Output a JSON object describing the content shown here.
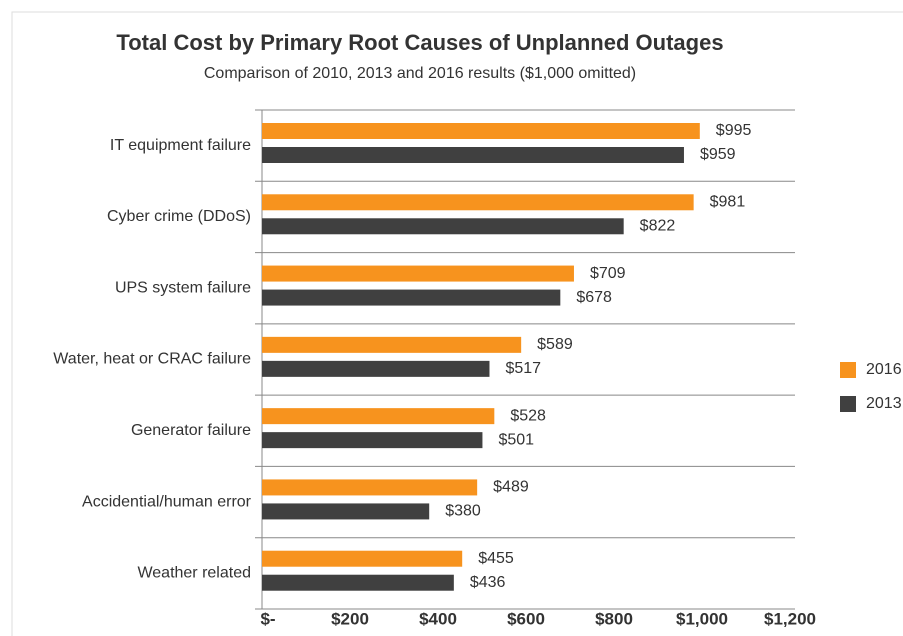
{
  "chart_data": {
    "type": "hbar",
    "title": "Total Cost by Primary Root Causes of Unplanned Outages",
    "subtitle": "Comparison of 2010, 2013 and 2016 results ($1,000 omitted)",
    "categories": [
      "IT equipment failure",
      "Cyber crime (DDoS)",
      "UPS system failure",
      "Water, heat or CRAC failure",
      "Generator failure",
      "Accidential/human error",
      "Weather related"
    ],
    "series": [
      {
        "name": "2016",
        "color": "#f7931e",
        "values": [
          995,
          981,
          709,
          589,
          528,
          489,
          455
        ],
        "value_labels": [
          "$995",
          "$981",
          "$709",
          "$589",
          "$528",
          "$489",
          "$455"
        ]
      },
      {
        "name": "2013",
        "color": "#404040",
        "values": [
          959,
          822,
          678,
          517,
          501,
          380,
          436
        ],
        "value_labels": [
          "$959",
          "$822",
          "$678",
          "$517",
          "$501",
          "$380",
          "$436"
        ]
      }
    ],
    "xlim": [
      0,
      1200
    ],
    "xticks": [
      {
        "value": 0,
        "label": "$-"
      },
      {
        "value": 200,
        "label": "$200"
      },
      {
        "value": 400,
        "label": "$400"
      },
      {
        "value": 600,
        "label": "$600"
      },
      {
        "value": 800,
        "label": "$800"
      },
      {
        "value": 1000,
        "label": "$1,000"
      },
      {
        "value": 1200,
        "label": "$1,200"
      }
    ],
    "legend": "right"
  }
}
